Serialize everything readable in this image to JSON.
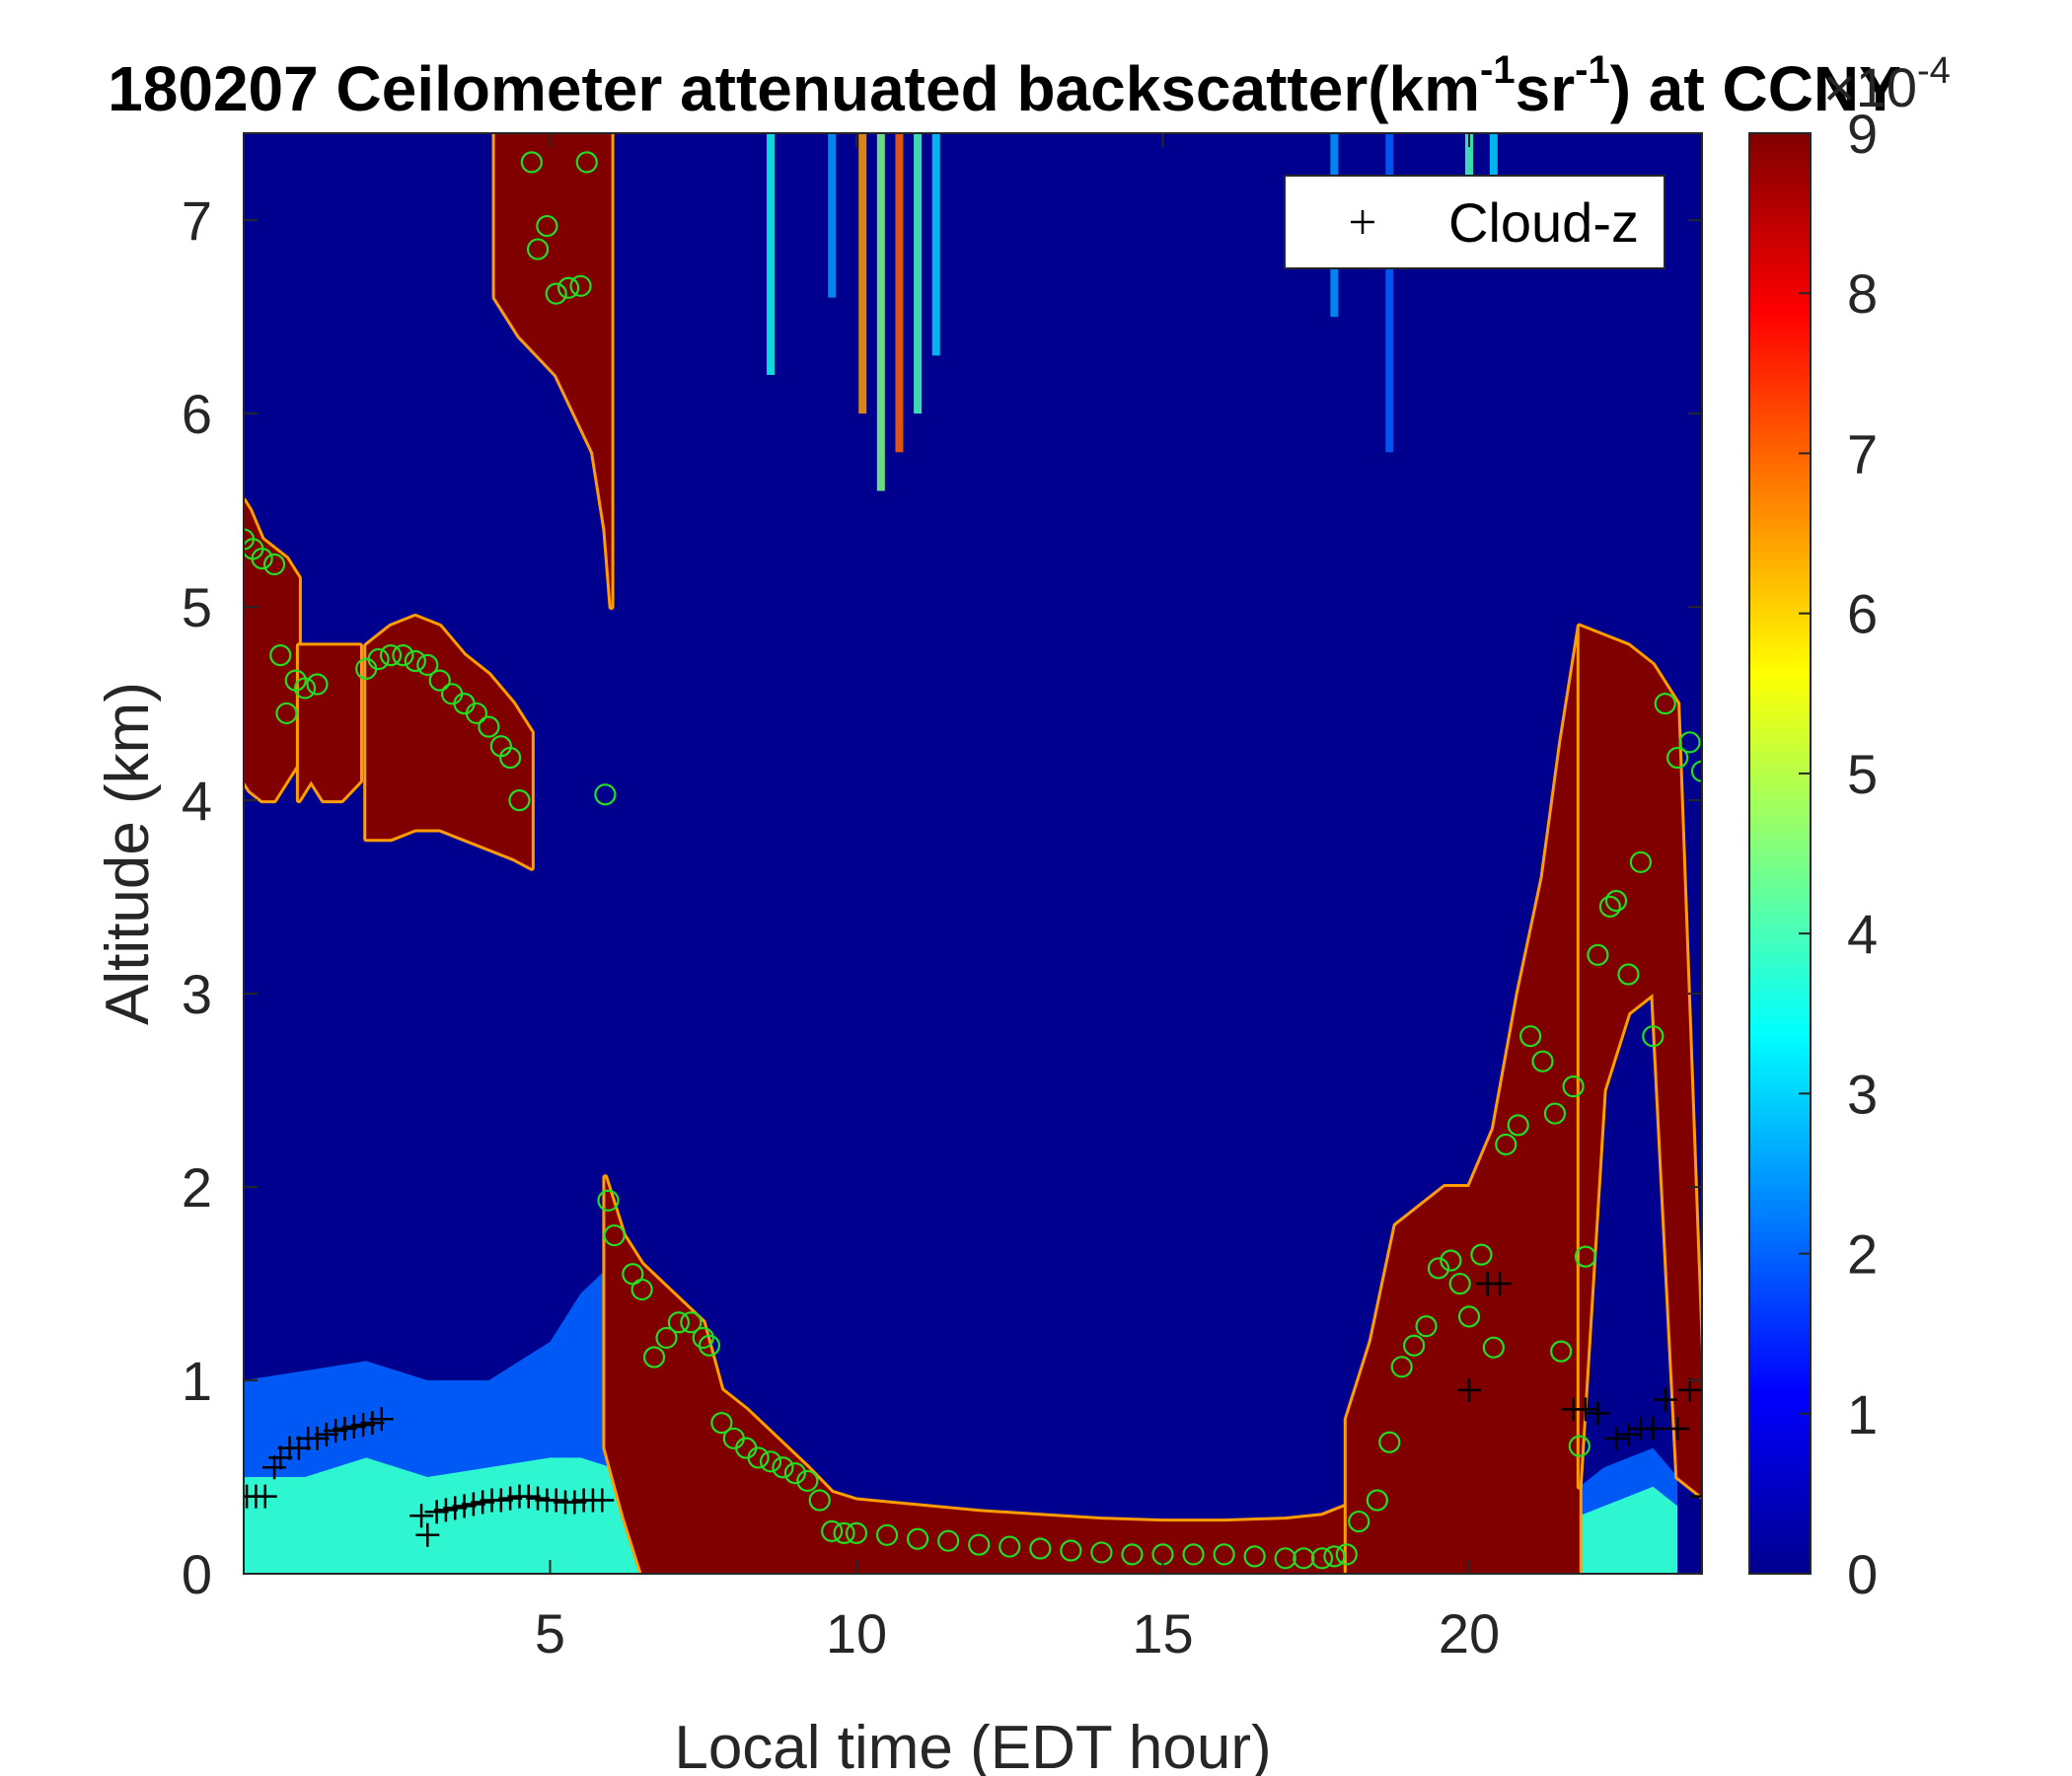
{
  "chart_data": {
    "type": "heatmap",
    "title": {
      "prefix": "180207 Ceilometer attenuated backscatter(km",
      "sup1": "-1",
      "middle": "sr",
      "sup2": "-1",
      "suffix": ") at CCNY"
    },
    "xlabel": "Local time (EDT hour)",
    "ylabel": "Altitude (km)",
    "xlim": [
      0,
      23.8
    ],
    "ylim": [
      0,
      7.45
    ],
    "xticks": [
      5,
      10,
      15,
      20
    ],
    "yticks": [
      0,
      1,
      2,
      3,
      4,
      5,
      6,
      7
    ],
    "colorbar": {
      "colormap": "jet",
      "range": [
        0,
        9
      ],
      "ticks": [
        0,
        1,
        2,
        3,
        4,
        5,
        6,
        7,
        8,
        9
      ],
      "exponent_label": "×10",
      "exponent_power": "-4"
    },
    "legend": {
      "position": "top-right",
      "entries": [
        {
          "marker": "+",
          "label": "Cloud-z",
          "color": "#000000"
        }
      ]
    },
    "cloud_layers": [
      {
        "x": [
          0.0,
          0.1,
          0.3,
          0.5,
          0.7,
          0.8,
          0.9
        ],
        "top": [
          5.55,
          5.5,
          5.35,
          5.3,
          5.25,
          5.2,
          5.15
        ],
        "base": [
          4.1,
          4.05,
          4.0,
          4.0,
          4.1,
          4.15,
          4.2
        ]
      },
      {
        "x": [
          0.9,
          1.1,
          1.3,
          1.6,
          1.9
        ],
        "top": [
          4.8,
          4.8,
          4.8,
          4.8,
          4.8
        ],
        "base": [
          4.0,
          4.1,
          4.0,
          4.0,
          4.1
        ]
      },
      {
        "x": [
          2.0,
          2.4,
          2.8,
          3.2,
          3.6,
          4.0,
          4.4,
          4.7
        ],
        "top": [
          4.8,
          4.9,
          4.95,
          4.9,
          4.75,
          4.65,
          4.5,
          4.35
        ],
        "base": [
          3.8,
          3.8,
          3.85,
          3.85,
          3.8,
          3.75,
          3.7,
          3.65
        ]
      },
      {
        "x": [
          4.1,
          4.3,
          4.5,
          4.8,
          5.1,
          5.4,
          5.7,
          5.9,
          6.0
        ],
        "top": [
          7.45,
          7.45,
          7.45,
          7.45,
          7.45,
          7.45,
          7.45,
          7.45,
          7.45
        ],
        "base": [
          6.6,
          6.5,
          6.4,
          6.3,
          6.2,
          6.0,
          5.8,
          5.4,
          5.0
        ]
      },
      {
        "x": [
          5.9,
          6.2,
          6.5,
          7.0,
          7.5,
          7.8,
          8.2,
          8.7,
          9.2,
          9.6,
          10.0,
          11.0,
          12.0,
          13.0,
          14.0,
          15.0,
          16.0,
          17.0,
          17.6,
          18.0
        ],
        "top": [
          2.05,
          1.75,
          1.6,
          1.45,
          1.3,
          0.95,
          0.85,
          0.7,
          0.55,
          0.42,
          0.38,
          0.35,
          0.32,
          0.3,
          0.28,
          0.27,
          0.27,
          0.28,
          0.3,
          0.35
        ],
        "base": [
          0.65,
          0.3,
          0.0,
          0.0,
          0.0,
          0.0,
          0.0,
          0.0,
          0.0,
          0.0,
          0.0,
          0.0,
          0.0,
          0.0,
          0.0,
          0.0,
          0.0,
          0.0,
          0.0,
          0.0
        ]
      },
      {
        "x": [
          18.0,
          18.4,
          18.8,
          19.2,
          19.6,
          20.0,
          20.4,
          20.8,
          21.2,
          21.5,
          21.8
        ],
        "top": [
          0.8,
          1.2,
          1.8,
          1.9,
          2.0,
          2.0,
          2.3,
          3.0,
          3.6,
          4.3,
          4.9
        ],
        "base": [
          0.0,
          0.0,
          0.0,
          0.0,
          0.0,
          0.0,
          0.0,
          0.0,
          0.0,
          0.0,
          0.0
        ]
      },
      {
        "x": [
          21.8,
          22.2,
          22.6,
          23.0,
          23.4,
          23.8
        ],
        "top": [
          4.9,
          4.85,
          4.8,
          4.7,
          4.5,
          1.0
        ],
        "base": [
          0.45,
          2.5,
          2.9,
          3.0,
          0.5,
          0.4
        ]
      }
    ],
    "aerosol_layers": [
      {
        "x": [
          0.0,
          1.0,
          2.0,
          3.0,
          4.0,
          5.0,
          5.5,
          6.0,
          6.5
        ],
        "top": [
          1.0,
          1.05,
          1.1,
          1.0,
          1.0,
          1.2,
          1.45,
          1.6,
          0.5
        ],
        "core_top": [
          0.5,
          0.5,
          0.6,
          0.5,
          0.55,
          0.6,
          0.6,
          0.55,
          0.3
        ]
      },
      {
        "x": [
          21.8,
          22.2,
          22.6,
          23.0,
          23.4
        ],
        "top": [
          0.45,
          0.55,
          0.6,
          0.65,
          0.5
        ],
        "core_top": [
          0.3,
          0.35,
          0.4,
          0.45,
          0.35
        ]
      }
    ],
    "cirrus_streaks": [
      {
        "x": 8.6,
        "top": 7.45,
        "base": 6.2,
        "intensity": 3.5
      },
      {
        "x": 9.6,
        "top": 7.45,
        "base": 6.6,
        "intensity": 2.5
      },
      {
        "x": 10.1,
        "top": 7.45,
        "base": 6.0,
        "intensity": 6.5
      },
      {
        "x": 10.4,
        "top": 7.45,
        "base": 5.6,
        "intensity": 4.5
      },
      {
        "x": 10.7,
        "top": 7.45,
        "base": 5.8,
        "intensity": 7.0
      },
      {
        "x": 11.0,
        "top": 7.45,
        "base": 6.0,
        "intensity": 4.0
      },
      {
        "x": 11.3,
        "top": 7.45,
        "base": 6.3,
        "intensity": 3.0
      },
      {
        "x": 17.8,
        "top": 7.45,
        "base": 6.5,
        "intensity": 2.5
      },
      {
        "x": 18.7,
        "top": 7.45,
        "base": 5.8,
        "intensity": 2.0
      },
      {
        "x": 20.0,
        "top": 7.45,
        "base": 7.0,
        "intensity": 4.0
      },
      {
        "x": 20.4,
        "top": 7.45,
        "base": 6.8,
        "intensity": 3.0
      }
    ],
    "series": [
      {
        "name": "Cloud-z",
        "marker": "+",
        "color": "#000000",
        "x": [
          0.05,
          0.2,
          0.35,
          0.5,
          0.6,
          0.75,
          0.9,
          1.05,
          1.2,
          1.35,
          1.5,
          1.65,
          1.8,
          1.95,
          2.1,
          2.25,
          2.9,
          3.0,
          3.15,
          3.3,
          3.45,
          3.6,
          3.75,
          3.9,
          4.05,
          4.2,
          4.35,
          4.5,
          4.65,
          4.8,
          4.95,
          5.1,
          5.25,
          5.4,
          5.55,
          5.7,
          5.85,
          20.0,
          20.3,
          20.5,
          21.7,
          21.9,
          22.1,
          22.4,
          22.6,
          22.8,
          23.0,
          23.2,
          23.4,
          23.6,
          23.8
        ],
        "y": [
          0.4,
          0.4,
          0.4,
          0.55,
          0.6,
          0.65,
          0.65,
          0.7,
          0.7,
          0.72,
          0.74,
          0.75,
          0.76,
          0.77,
          0.78,
          0.8,
          0.3,
          0.2,
          0.32,
          0.33,
          0.34,
          0.35,
          0.36,
          0.37,
          0.38,
          0.38,
          0.39,
          0.4,
          0.4,
          0.39,
          0.38,
          0.38,
          0.37,
          0.37,
          0.38,
          0.38,
          0.38,
          0.95,
          1.5,
          1.5,
          0.85,
          0.85,
          0.83,
          0.7,
          0.72,
          0.75,
          0.75,
          0.9,
          0.75,
          0.95,
          0.4
        ]
      },
      {
        "name": "",
        "marker": "o",
        "color": "#22dd22",
        "x": [
          0.0,
          0.15,
          0.3,
          0.5,
          0.6,
          0.7,
          0.85,
          1.0,
          1.2,
          2.0,
          2.2,
          2.4,
          2.6,
          2.8,
          3.0,
          3.2,
          3.4,
          3.6,
          3.8,
          4.0,
          4.2,
          4.35,
          4.5,
          4.7,
          4.8,
          4.95,
          5.1,
          5.3,
          5.5,
          5.6,
          5.9,
          5.95,
          6.05,
          6.35,
          6.5,
          6.7,
          6.9,
          7.1,
          7.3,
          7.5,
          7.6,
          7.8,
          8.0,
          8.2,
          8.4,
          8.6,
          8.8,
          9.0,
          9.2,
          9.4,
          9.6,
          9.8,
          10.0,
          10.5,
          11.0,
          11.5,
          12.0,
          12.5,
          13.0,
          13.5,
          14.0,
          14.5,
          15.0,
          15.5,
          16.0,
          16.5,
          17.0,
          17.3,
          17.6,
          17.8,
          18.0,
          18.2,
          18.5,
          18.7,
          18.9,
          19.1,
          19.3,
          19.5,
          19.7,
          19.85,
          20.0,
          20.2,
          20.4,
          20.6,
          20.8,
          21.0,
          21.2,
          21.4,
          21.5,
          21.7,
          21.8,
          21.9,
          22.1,
          22.3,
          22.4,
          22.6,
          22.8,
          23.0,
          23.2,
          23.4,
          23.6,
          23.8
        ],
        "y": [
          5.35,
          5.3,
          5.25,
          5.22,
          4.75,
          4.45,
          4.62,
          4.58,
          4.6,
          4.68,
          4.73,
          4.75,
          4.75,
          4.72,
          4.7,
          4.62,
          4.55,
          4.5,
          4.45,
          4.38,
          4.28,
          4.22,
          4.0,
          7.3,
          6.85,
          6.97,
          6.62,
          6.65,
          6.66,
          7.3,
          4.03,
          1.93,
          1.75,
          1.55,
          1.47,
          1.12,
          1.22,
          1.3,
          1.3,
          1.22,
          1.18,
          0.78,
          0.7,
          0.65,
          0.6,
          0.58,
          0.55,
          0.52,
          0.48,
          0.38,
          0.22,
          0.21,
          0.21,
          0.2,
          0.18,
          0.17,
          0.15,
          0.14,
          0.13,
          0.12,
          0.11,
          0.1,
          0.1,
          0.1,
          0.1,
          0.09,
          0.08,
          0.08,
          0.08,
          0.09,
          0.1,
          0.27,
          0.38,
          0.68,
          1.07,
          1.18,
          1.28,
          1.58,
          1.62,
          1.5,
          1.33,
          1.65,
          1.17,
          2.22,
          2.32,
          2.78,
          2.65,
          2.38,
          1.15,
          2.52,
          0.66,
          1.64,
          3.2,
          3.45,
          3.48,
          3.1,
          3.68,
          2.78,
          4.5,
          4.22,
          4.3,
          4.15
        ]
      }
    ]
  }
}
